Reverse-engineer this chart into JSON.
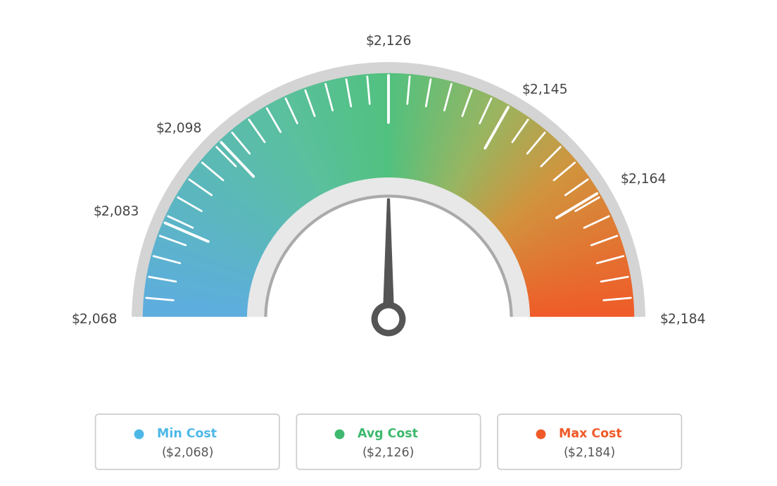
{
  "min_val": 2068,
  "avg_val": 2126,
  "max_val": 2184,
  "tick_labels": [
    "$2,068",
    "$2,083",
    "$2,098",
    "$2,126",
    "$2,145",
    "$2,164",
    "$2,184"
  ],
  "tick_values": [
    2068,
    2083,
    2098,
    2126,
    2145,
    2164,
    2184
  ],
  "legend_items": [
    {
      "label": "Min Cost",
      "value": "($2,068)",
      "color": "#4db8e8"
    },
    {
      "label": "Avg Cost",
      "value": "($2,126)",
      "color": "#3db86e"
    },
    {
      "label": "Max Cost",
      "value": "($2,184)",
      "color": "#f05a28"
    }
  ],
  "needle_value": 2126,
  "bg_color": "#ffffff",
  "color_stops": [
    [
      0.0,
      [
        0.365,
        0.678,
        0.882
      ]
    ],
    [
      0.35,
      [
        0.353,
        0.753,
        0.62
      ]
    ],
    [
      0.5,
      [
        0.318,
        0.757,
        0.498
      ]
    ],
    [
      0.65,
      [
        0.6,
        0.71,
        0.38
      ]
    ],
    [
      0.78,
      [
        0.82,
        0.58,
        0.24
      ]
    ],
    [
      1.0,
      [
        0.941,
        0.353,
        0.157
      ]
    ]
  ]
}
